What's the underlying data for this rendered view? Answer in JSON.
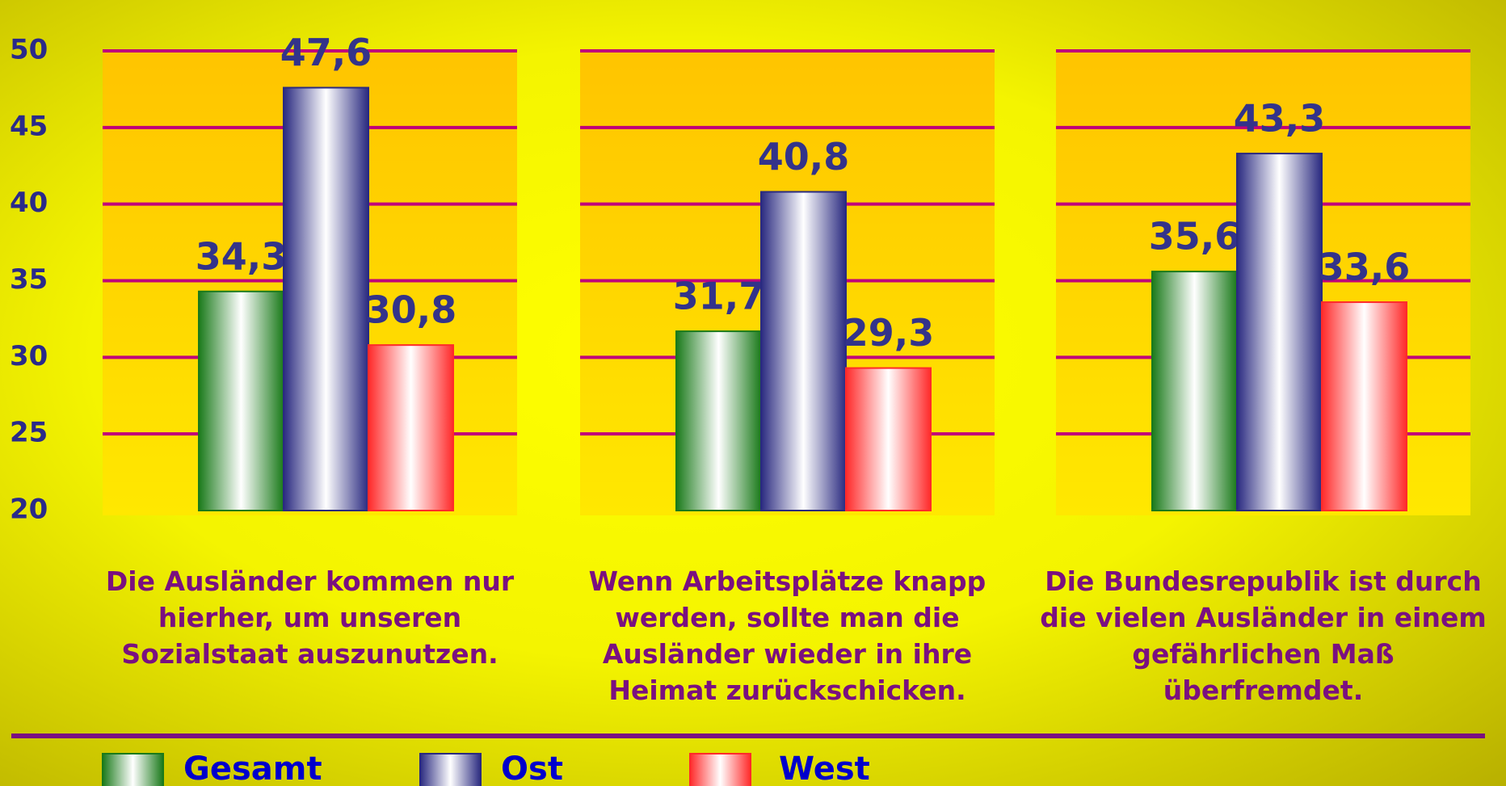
{
  "chart_data": {
    "type": "bar",
    "categories": [
      "Die Ausländer kommen nur hierher, um unseren Sozialstaat auszunutzen.",
      "Wenn Arbeitsplätze knapp werden, sollte man die Ausländer wieder in ihre Heimat zurückschicken.",
      "Die Bundesrepublik ist durch die vielen Ausländer in einem gefährlichen Maß überfremdet."
    ],
    "series": [
      {
        "name": "Gesamt",
        "color": "#1a7a1a",
        "values": [
          34.3,
          31.7,
          35.6
        ],
        "value_labels": [
          "34,3",
          "31,7",
          "35,6"
        ]
      },
      {
        "name": "Ost",
        "color": "#2a2a80",
        "values": [
          47.6,
          40.8,
          43.3
        ],
        "value_labels": [
          "47,6",
          "40,8",
          "43,3"
        ]
      },
      {
        "name": "West",
        "color": "#ff2a2a",
        "values": [
          30.8,
          29.3,
          33.6
        ],
        "value_labels": [
          "30,8",
          "29,3",
          "33,6"
        ]
      }
    ],
    "ylim": [
      20,
      50
    ],
    "yticks": [
      20,
      25,
      30,
      35,
      40,
      45,
      50
    ],
    "grid": true
  }
}
